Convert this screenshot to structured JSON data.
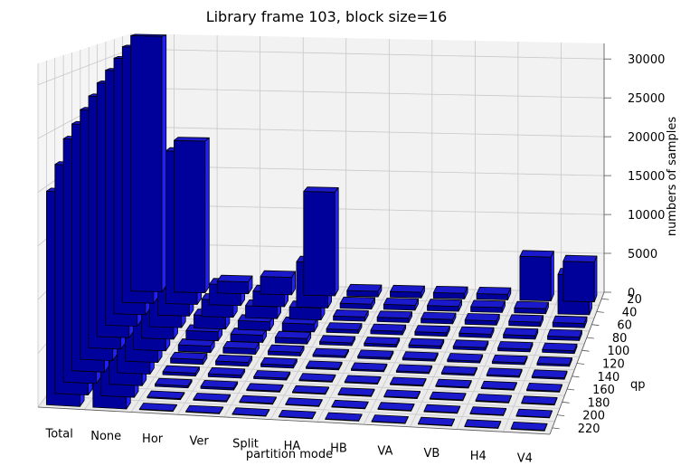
{
  "chart_data": {
    "type": "bar3d",
    "title": "Library frame 103, block size=16",
    "xlabel": "partition mode",
    "ylabel": "qp",
    "zlabel": "numbers of samples",
    "categories": [
      "Total",
      "None",
      "Hor",
      "Ver",
      "Split",
      "HA",
      "HB",
      "VA",
      "VB",
      "H4",
      "V4"
    ],
    "qp": [
      20,
      40,
      60,
      80,
      100,
      120,
      140,
      160,
      180,
      200,
      220
    ],
    "z_ticks": [
      0,
      5000,
      10000,
      15000,
      20000,
      25000,
      30000
    ],
    "zlim": [
      0,
      32000
    ],
    "grid": true,
    "bar_color": "#0000a0",
    "values": [
      [
        32000,
        31000,
        30000,
        29000,
        28000,
        27000,
        26000,
        25000,
        24000,
        22000,
        20000
      ],
      [
        19000,
        18500,
        18000,
        17500,
        17000,
        16000,
        15000,
        14000,
        13000,
        12000,
        10000
      ],
      [
        1500,
        2500,
        2000,
        1500,
        1000,
        700,
        500,
        300,
        200,
        100,
        50
      ],
      [
        2200,
        1800,
        1400,
        1000,
        800,
        600,
        400,
        300,
        200,
        100,
        50
      ],
      [
        13000,
        5500,
        1400,
        900,
        600,
        400,
        300,
        200,
        100,
        80,
        50
      ],
      [
        700,
        600,
        500,
        400,
        300,
        200,
        150,
        100,
        80,
        60,
        40
      ],
      [
        700,
        600,
        500,
        400,
        300,
        200,
        150,
        100,
        80,
        60,
        40
      ],
      [
        700,
        600,
        500,
        400,
        300,
        200,
        150,
        100,
        80,
        60,
        40
      ],
      [
        700,
        600,
        500,
        400,
        300,
        200,
        150,
        100,
        80,
        60,
        40
      ],
      [
        5500,
        600,
        500,
        400,
        300,
        200,
        150,
        100,
        80,
        60,
        40
      ],
      [
        5000,
        4800,
        500,
        400,
        300,
        200,
        150,
        100,
        80,
        60,
        40
      ]
    ]
  }
}
